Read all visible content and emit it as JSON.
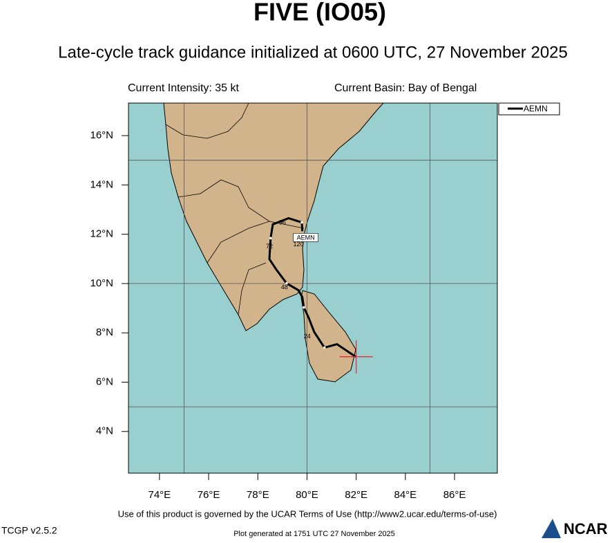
{
  "header": {
    "title": "FIVE (IO05)",
    "subtitle": "Late-cycle track guidance initialized at 0600 UTC, 27 November 2025",
    "intensity": "Current Intensity: 35 kt",
    "basin": "Current Basin: Bay of Bengal"
  },
  "map": {
    "xlim": [
      72.74,
      87.74
    ],
    "ylim": [
      2.31,
      17.32
    ],
    "xticks": [
      {
        "value": 74,
        "label": "74°E"
      },
      {
        "value": 76,
        "label": "76°E"
      },
      {
        "value": 78,
        "label": "78°E"
      },
      {
        "value": 80,
        "label": "80°E"
      },
      {
        "value": 82,
        "label": "82°E"
      },
      {
        "value": 84,
        "label": "84°E"
      },
      {
        "value": 86,
        "label": "86°E"
      }
    ],
    "yticks": [
      {
        "value": 4,
        "label": "4°N"
      },
      {
        "value": 6,
        "label": "6°N"
      },
      {
        "value": 8,
        "label": "8°N"
      },
      {
        "value": 10,
        "label": "10°N"
      },
      {
        "value": 12,
        "label": "12°N"
      },
      {
        "value": 14,
        "label": "14°N"
      },
      {
        "value": 16,
        "label": "16°N"
      }
    ],
    "grid_lon": [
      75,
      80,
      85
    ],
    "grid_lat": [
      5,
      10,
      15
    ],
    "track": {
      "name": "AEMN",
      "color": "#000000",
      "lon": [
        81.98,
        81.22,
        80.71,
        80.29,
        80.07,
        79.87,
        79.81,
        79.65,
        79.17,
        78.75,
        78.47,
        78.52,
        78.61,
        79.25,
        79.79,
        79.81
      ],
      "lat": [
        7.03,
        7.54,
        7.4,
        8.04,
        8.61,
        9.03,
        9.45,
        9.73,
        10.01,
        10.57,
        10.99,
        11.84,
        12.4,
        12.65,
        12.48,
        12.12
      ]
    },
    "forecast_labels": [
      {
        "label": 24,
        "lon": 80.01,
        "lat": 7.85
      },
      {
        "label": 48,
        "lon": 79.08,
        "lat": 9.84
      },
      {
        "label": 72,
        "lon": 78.47,
        "lat": 11.5
      },
      {
        "label": 96,
        "lon": 79.0,
        "lat": 12.46
      },
      {
        "label": 120,
        "lon": 79.65,
        "lat": 11.58
      }
    ],
    "current_position": {
      "lon": 82.0,
      "lat": 7.03,
      "color": "#e8202a"
    }
  },
  "footer": {
    "terms": "Use of this product is governed by the UCAR Terms of Use (http://www2.ucar.edu/terms-of-use)",
    "version": "TCGP v2.5.2",
    "generated": "Plot generated at 1751 UTC   27 November 2025",
    "logo": "NCAR"
  }
}
